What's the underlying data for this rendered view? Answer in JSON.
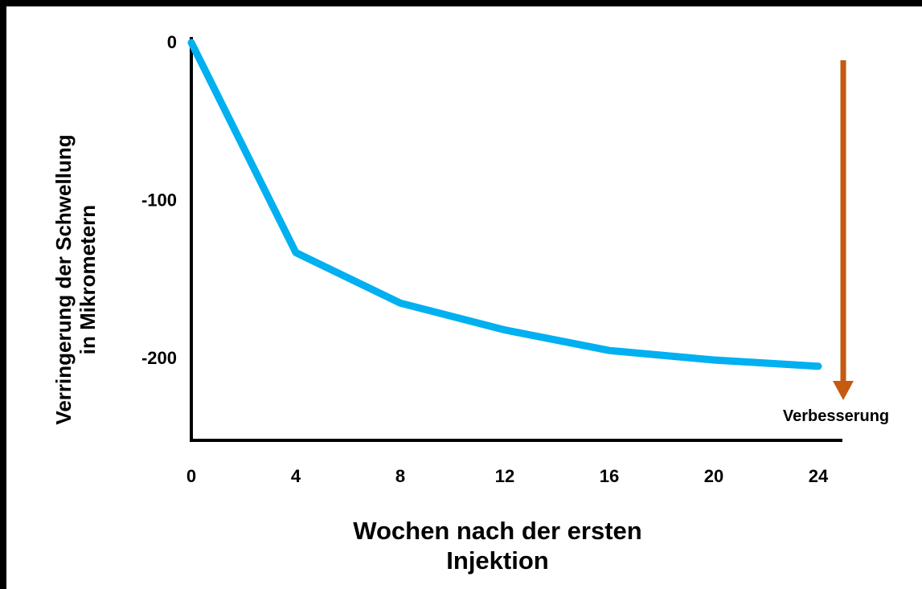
{
  "chart_data": {
    "type": "line",
    "x": [
      0,
      4,
      8,
      12,
      16,
      20,
      24
    ],
    "series": [
      {
        "values": [
          0,
          -133,
          -165,
          -182,
          -195,
          -201,
          -205
        ]
      }
    ],
    "xticks": [
      "0",
      "4",
      "8",
      "12",
      "16",
      "20",
      "24"
    ],
    "yticks": [
      "0",
      "-100",
      "-200"
    ],
    "xlim": [
      0,
      24
    ],
    "ylim": [
      -255,
      0
    ],
    "xlabel_lines": [
      "Wochen nach der ersten",
      "Injektion"
    ],
    "ylabel_lines": [
      "Verringerung der Schwellung",
      "in Mikrometern"
    ],
    "annotation": "Verbesserung",
    "grid": false
  },
  "colors": {
    "line": "#00B0F0",
    "arrow": "#C55A11",
    "axis": "#000000",
    "background": "#FFFFFF",
    "border": "#000000"
  }
}
